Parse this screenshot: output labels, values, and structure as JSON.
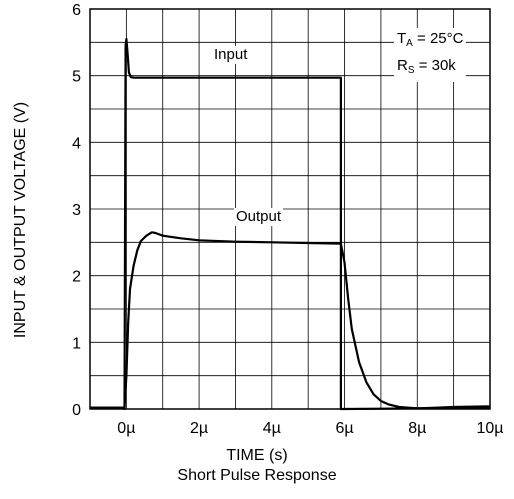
{
  "chart_data": {
    "type": "line",
    "xlabel": "TIME (s)",
    "ylabel": "INPUT & OUTPUT VOLTAGE (V)",
    "caption": "Short Pulse Response",
    "xlim": [
      -1.0,
      10.0
    ],
    "ylim": [
      0,
      6
    ],
    "x_ticks": [
      0,
      2,
      4,
      6,
      8,
      10
    ],
    "x_tick_labels": [
      "0µ",
      "2µ",
      "4µ",
      "6µ",
      "8µ",
      "10µ"
    ],
    "y_ticks": [
      0,
      1,
      2,
      3,
      4,
      5,
      6
    ],
    "y_tick_labels": [
      "0",
      "1",
      "2",
      "3",
      "4",
      "5",
      "6"
    ],
    "grid": true,
    "conditions": {
      "ta_symbol": "T",
      "ta_sub": "A",
      "ta_value": "= 25°C",
      "rs_symbol": "R",
      "rs_sub": "S",
      "rs_value": "= 30k"
    },
    "series": [
      {
        "name": "Input",
        "x": [
          -1.0,
          -0.05,
          -0.05,
          -0.02,
          0.0,
          0.03,
          0.07,
          0.12,
          0.2,
          5.9,
          5.9,
          6.0,
          10.0
        ],
        "y": [
          0.02,
          0.02,
          0.0,
          5.45,
          5.55,
          5.35,
          5.05,
          4.98,
          4.97,
          4.97,
          0.0,
          0.0,
          0.02
        ]
      },
      {
        "name": "Output",
        "x": [
          -1.0,
          -0.05,
          0.0,
          0.05,
          0.1,
          0.2,
          0.3,
          0.4,
          0.55,
          0.7,
          0.8,
          1.0,
          1.5,
          2.0,
          3.0,
          4.0,
          5.0,
          5.9,
          6.0,
          6.1,
          6.2,
          6.4,
          6.6,
          6.8,
          7.0,
          7.2,
          7.5,
          8.0,
          8.5,
          9.0,
          10.0
        ],
        "y": [
          0.02,
          0.02,
          0.5,
          1.3,
          1.8,
          2.15,
          2.38,
          2.52,
          2.6,
          2.65,
          2.64,
          2.6,
          2.56,
          2.53,
          2.51,
          2.5,
          2.49,
          2.48,
          2.2,
          1.65,
          1.2,
          0.7,
          0.4,
          0.22,
          0.12,
          0.07,
          0.03,
          0.01,
          0.02,
          0.03,
          0.04
        ]
      }
    ]
  }
}
